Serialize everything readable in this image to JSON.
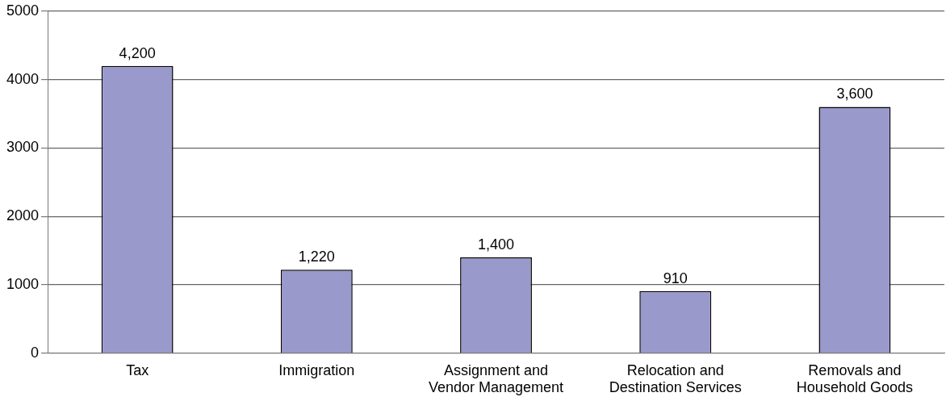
{
  "chart_data": {
    "type": "bar",
    "categories": [
      "Tax",
      "Immigration",
      "Assignment and Vendor Management",
      "Relocation and Destination Services",
      "Removals and Household Goods"
    ],
    "values": [
      4200,
      1220,
      1400,
      910,
      3600
    ],
    "value_labels": [
      "4,200",
      "1,220",
      "1,400",
      "910",
      "3,600"
    ],
    "color": "#9999cc",
    "ylim": [
      0,
      5000
    ],
    "yticks": [
      0,
      1000,
      2000,
      3000,
      4000,
      5000
    ],
    "grid": "y",
    "legend": false
  }
}
